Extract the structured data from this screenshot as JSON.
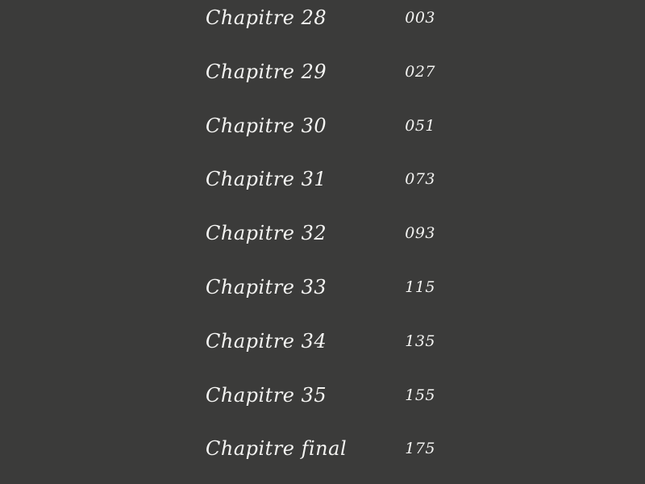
{
  "toc": {
    "background": "#3b3b3a",
    "entries": [
      {
        "title": "Chapitre 28",
        "page": "003"
      },
      {
        "title": "Chapitre 29",
        "page": "027"
      },
      {
        "title": "Chapitre 30",
        "page": "051"
      },
      {
        "title": "Chapitre 31",
        "page": "073"
      },
      {
        "title": "Chapitre 32",
        "page": "093"
      },
      {
        "title": "Chapitre 33",
        "page": "115"
      },
      {
        "title": "Chapitre 34",
        "page": "135"
      },
      {
        "title": "Chapitre 35",
        "page": "155"
      },
      {
        "title": "Chapitre final",
        "page": "175"
      }
    ]
  }
}
